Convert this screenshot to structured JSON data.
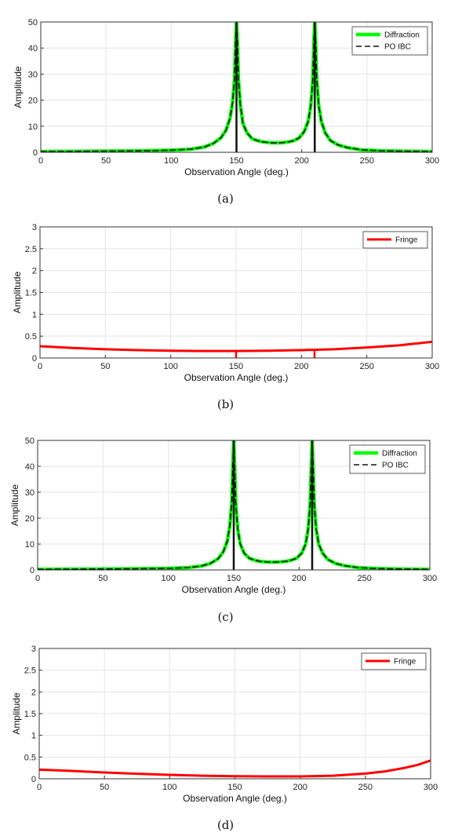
{
  "chart_data": [
    {
      "type": "line",
      "caption": "(a)",
      "xlabel": "Observation Angle (deg.)",
      "ylabel": "Amplitude",
      "xlim": [
        0,
        300
      ],
      "ylim": [
        0,
        50
      ],
      "xticks": [
        "0",
        "50",
        "100",
        "150",
        "200",
        "250",
        "300"
      ],
      "yticks": [
        "0",
        "10",
        "20",
        "30",
        "40",
        "50"
      ],
      "grid": true,
      "legend_position": "top-right",
      "series": [
        {
          "name": "Diffraction",
          "color": "#00ff00",
          "style": "solid",
          "x": [
            0,
            25,
            50,
            75,
            100,
            115,
            125,
            132,
            138,
            142,
            145,
            147,
            148.5,
            149.3,
            150,
            150.7,
            151.5,
            153,
            155,
            158,
            162,
            166,
            170,
            175,
            180,
            185,
            190,
            194,
            198,
            202,
            205,
            207,
            208.5,
            209.3,
            210,
            210.7,
            211.5,
            213,
            215,
            218,
            222,
            228,
            235,
            245,
            260,
            275,
            300
          ],
          "y": [
            0.3,
            0.35,
            0.45,
            0.55,
            0.8,
            1.2,
            2.0,
            3.3,
            5.5,
            8.5,
            13,
            19,
            28,
            42,
            50,
            42,
            28,
            18,
            11,
            7.5,
            5.2,
            4.5,
            4.0,
            3.7,
            3.6,
            3.7,
            4.0,
            4.5,
            5.5,
            8.0,
            12,
            18,
            28,
            42,
            50,
            42,
            28,
            18,
            12,
            7.5,
            4.5,
            2.8,
            1.8,
            1.0,
            0.6,
            0.45,
            0.3
          ]
        },
        {
          "name": "PO IBC",
          "color": "#111111",
          "style": "dashed",
          "x": [
            0,
            25,
            50,
            75,
            100,
            115,
            125,
            132,
            138,
            142,
            145,
            147,
            148.5,
            149.3,
            150,
            150.7,
            151.5,
            153,
            155,
            158,
            162,
            166,
            170,
            175,
            180,
            185,
            190,
            194,
            198,
            202,
            205,
            207,
            208.5,
            209.3,
            210,
            210.7,
            211.5,
            213,
            215,
            218,
            222,
            228,
            235,
            245,
            260,
            275,
            300
          ],
          "y": [
            0.3,
            0.35,
            0.45,
            0.55,
            0.8,
            1.2,
            2.0,
            3.3,
            5.5,
            8.5,
            13,
            19,
            28,
            42,
            50,
            42,
            28,
            18,
            11,
            7.5,
            5.2,
            4.5,
            4.0,
            3.7,
            3.6,
            3.7,
            4.0,
            4.5,
            5.5,
            8.0,
            12,
            18,
            28,
            42,
            50,
            42,
            28,
            18,
            12,
            7.5,
            4.5,
            2.8,
            1.8,
            1.0,
            0.6,
            0.45,
            0.3
          ]
        }
      ],
      "vlines": [
        {
          "x": 150,
          "y0": 0,
          "y1": 50,
          "color": "#111111"
        },
        {
          "x": 210,
          "y0": 0,
          "y1": 50,
          "color": "#111111"
        }
      ]
    },
    {
      "type": "line",
      "caption": "(b)",
      "xlabel": "Observation Angle (deg.)",
      "ylabel": "Amplitude",
      "xlim": [
        0,
        300
      ],
      "ylim": [
        0,
        3
      ],
      "xticks": [
        "0",
        "50",
        "100",
        "150",
        "200",
        "250",
        "300"
      ],
      "yticks": [
        "0",
        "0.5",
        "1",
        "1.5",
        "2",
        "2.5",
        "3"
      ],
      "grid": true,
      "legend_position": "top-right",
      "series": [
        {
          "name": "Fringe",
          "color": "#ff0000",
          "style": "solid",
          "x": [
            0,
            25,
            50,
            75,
            100,
            125,
            150,
            175,
            200,
            225,
            250,
            275,
            300
          ],
          "y": [
            0.27,
            0.23,
            0.2,
            0.18,
            0.165,
            0.16,
            0.16,
            0.165,
            0.18,
            0.2,
            0.24,
            0.29,
            0.37
          ]
        }
      ],
      "vlines": [
        {
          "x": 150,
          "y0": 0,
          "y1": 0.16,
          "color": "#ff0000"
        },
        {
          "x": 210,
          "y0": 0,
          "y1": 0.18,
          "color": "#ff0000"
        }
      ]
    },
    {
      "type": "line",
      "caption": "(c)",
      "xlabel": "Observation Angle (deg.)",
      "ylabel": "Amplitude",
      "xlim": [
        0,
        300
      ],
      "ylim": [
        0,
        50
      ],
      "xticks": [
        "0",
        "50",
        "100",
        "150",
        "200",
        "250",
        "300"
      ],
      "yticks": [
        "0",
        "10",
        "20",
        "30",
        "40",
        "50"
      ],
      "grid": true,
      "legend_position": "top-right",
      "series": [
        {
          "name": "Diffraction",
          "color": "#00ff00",
          "style": "solid",
          "x": [
            0,
            25,
            50,
            75,
            100,
            115,
            125,
            132,
            138,
            142,
            145,
            147,
            148.5,
            149.3,
            150,
            150.7,
            151.5,
            153,
            155,
            158,
            162,
            166,
            170,
            175,
            180,
            185,
            190,
            194,
            198,
            202,
            205,
            207,
            208.5,
            209.3,
            210,
            210.7,
            211.5,
            213,
            215,
            218,
            222,
            228,
            235,
            245,
            260,
            275,
            300
          ],
          "y": [
            0.25,
            0.3,
            0.35,
            0.45,
            0.6,
            0.9,
            1.5,
            2.5,
            4.3,
            7.0,
            11,
            17,
            26,
            40,
            50,
            40,
            26,
            16,
            10,
            6.5,
            4.5,
            3.8,
            3.3,
            3.1,
            3.0,
            3.1,
            3.3,
            3.8,
            4.5,
            6.5,
            10,
            16,
            26,
            40,
            50,
            40,
            26,
            16,
            10,
            6.5,
            4.0,
            2.5,
            1.6,
            0.9,
            0.5,
            0.35,
            0.25
          ]
        },
        {
          "name": "PO IBC",
          "color": "#111111",
          "style": "dashed",
          "x": [
            0,
            25,
            50,
            75,
            100,
            115,
            125,
            132,
            138,
            142,
            145,
            147,
            148.5,
            149.3,
            150,
            150.7,
            151.5,
            153,
            155,
            158,
            162,
            166,
            170,
            175,
            180,
            185,
            190,
            194,
            198,
            202,
            205,
            207,
            208.5,
            209.3,
            210,
            210.7,
            211.5,
            213,
            215,
            218,
            222,
            228,
            235,
            245,
            260,
            275,
            300
          ],
          "y": [
            0.25,
            0.3,
            0.35,
            0.45,
            0.6,
            0.9,
            1.5,
            2.5,
            4.3,
            7.0,
            11,
            17,
            26,
            40,
            50,
            40,
            26,
            16,
            10,
            6.5,
            4.5,
            3.8,
            3.3,
            3.1,
            3.0,
            3.1,
            3.3,
            3.8,
            4.5,
            6.5,
            10,
            16,
            26,
            40,
            50,
            40,
            26,
            16,
            10,
            6.5,
            4.0,
            2.5,
            1.6,
            0.9,
            0.5,
            0.35,
            0.25
          ]
        }
      ],
      "vlines": [
        {
          "x": 150,
          "y0": 0,
          "y1": 50,
          "color": "#111111"
        },
        {
          "x": 210,
          "y0": 0,
          "y1": 50,
          "color": "#111111"
        }
      ]
    },
    {
      "type": "line",
      "caption": "(d)",
      "xlabel": "Observation Angle (deg.)",
      "ylabel": "Amplitude",
      "xlim": [
        0,
        300
      ],
      "ylim": [
        0,
        3
      ],
      "xticks": [
        "0",
        "50",
        "100",
        "150",
        "200",
        "250",
        "300"
      ],
      "yticks": [
        "0",
        "0.5",
        "1",
        "1.5",
        "2",
        "2.5",
        "3"
      ],
      "grid": true,
      "legend_position": "top-right",
      "series": [
        {
          "name": "Fringe",
          "color": "#ff0000",
          "style": "solid",
          "x": [
            0,
            25,
            50,
            75,
            100,
            125,
            150,
            175,
            200,
            225,
            250,
            265,
            280,
            290,
            300
          ],
          "y": [
            0.21,
            0.18,
            0.145,
            0.115,
            0.09,
            0.07,
            0.06,
            0.055,
            0.055,
            0.07,
            0.12,
            0.17,
            0.25,
            0.32,
            0.42
          ]
        }
      ],
      "vlines": []
    }
  ]
}
